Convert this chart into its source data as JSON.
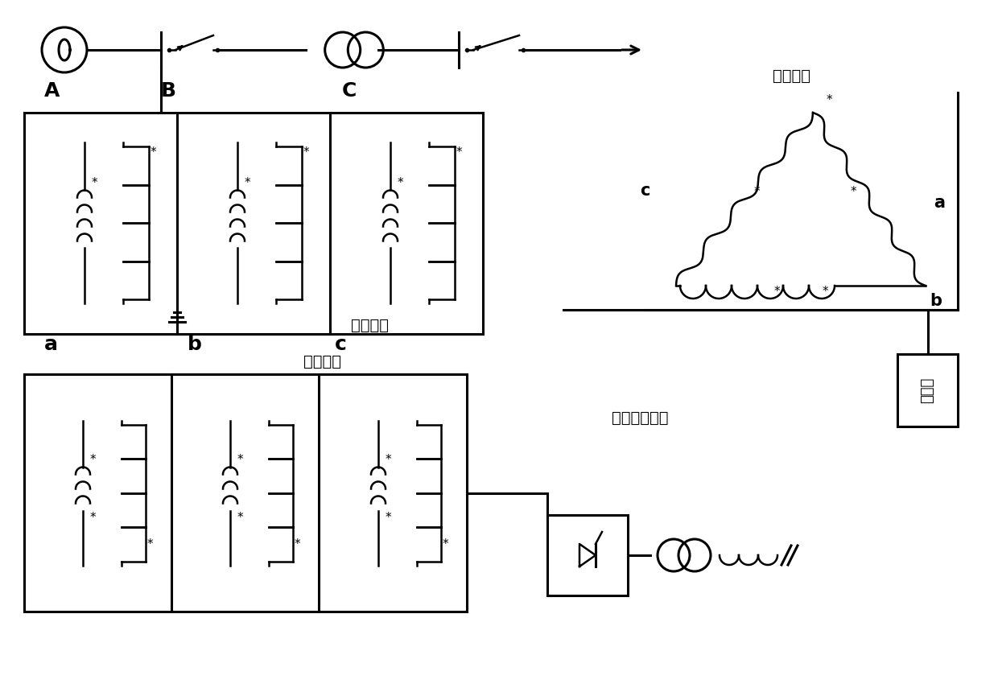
{
  "bg_color": "#ffffff",
  "line_color": "#000000",
  "labels": {
    "phase_A": "A",
    "phase_B": "B",
    "phase_C": "C",
    "ctrl_a": "a",
    "ctrl_b": "b",
    "ctrl_c": "c",
    "comp_a": "a",
    "comp_b": "b",
    "comp_c": "c",
    "wang_side": "网侧绕组",
    "ctrl_winding": "控制绕组",
    "comp_winding": "补偿绕组",
    "dc_excite": "直流励磁系统",
    "filter": "滤波器"
  },
  "figsize": [
    12.4,
    8.55
  ],
  "dpi": 100
}
